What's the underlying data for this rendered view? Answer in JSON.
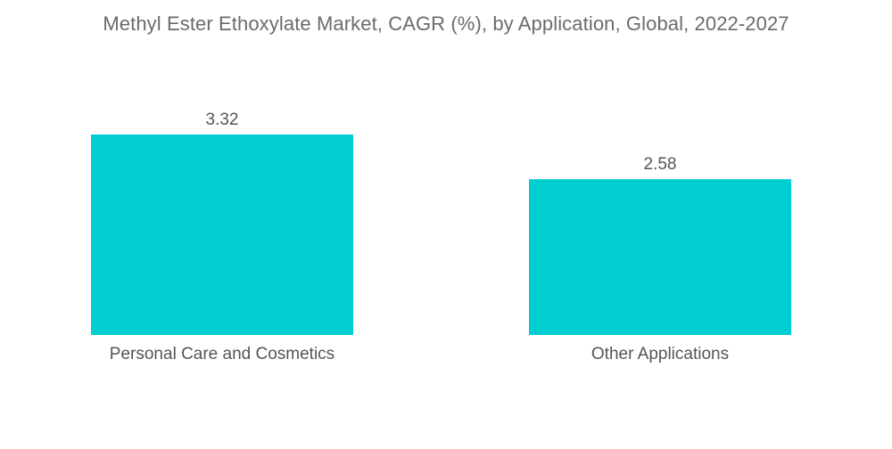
{
  "chart_data": {
    "type": "bar",
    "title": "Methyl Ester Ethoxylate Market, CAGR (%), by Application, Global, 2022-2027",
    "xlabel": "",
    "ylabel": "",
    "categories": [
      "Personal Care and Cosmetics",
      "Other Applications"
    ],
    "values": [
      3.32,
      2.58
    ],
    "value_labels": [
      "3.32",
      "2.58"
    ],
    "ylim": [
      0,
      3.32
    ],
    "grid": false,
    "legend": "none",
    "colors": {
      "bar": "#00CED1",
      "text": "#555555",
      "title": "#6b6b6b"
    }
  }
}
